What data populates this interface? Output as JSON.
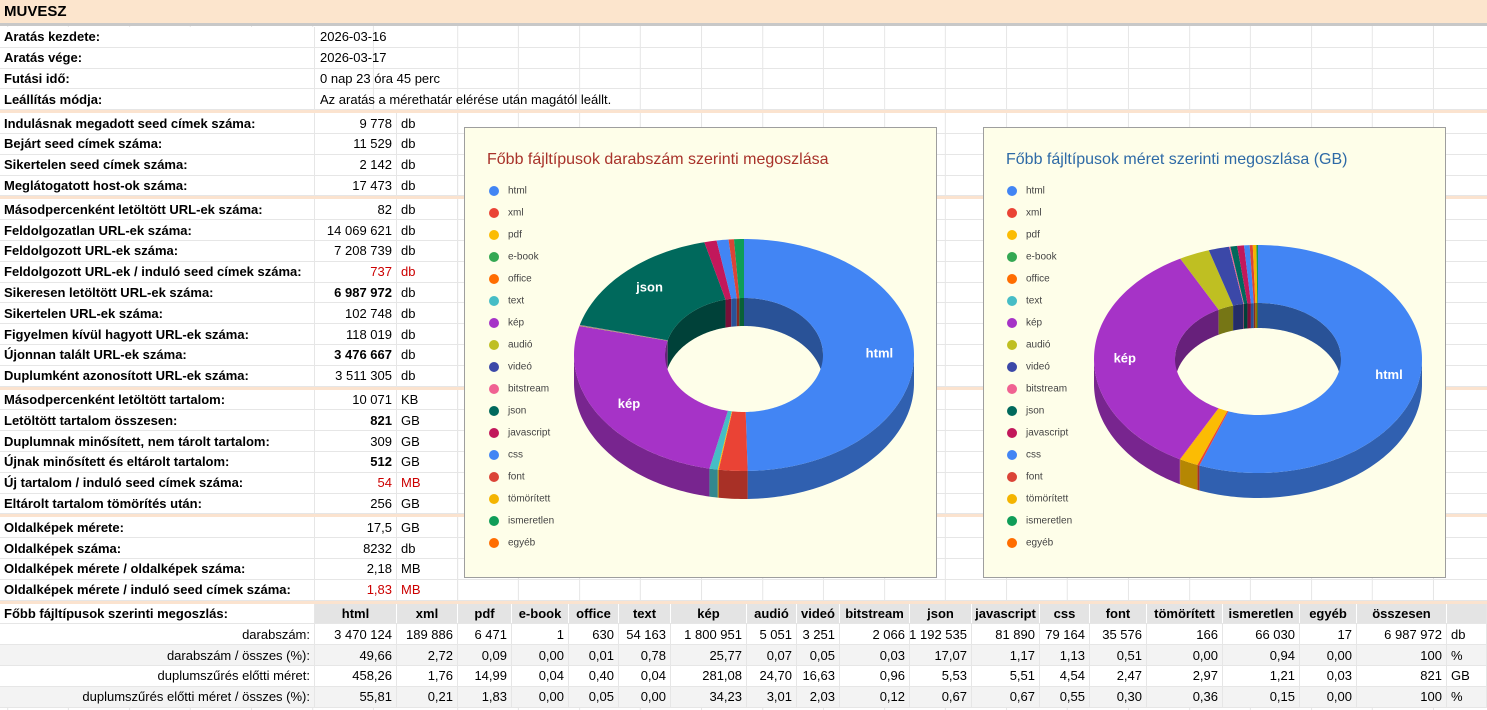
{
  "sheet": {
    "title": "MUVESZ",
    "groups": [
      [
        {
          "label": "Aratás kezdete:",
          "value": "2026-03-16"
        },
        {
          "label": "Aratás vége:",
          "value": "2026-03-17"
        },
        {
          "label": "Futási idő:",
          "value": "0 nap 23 óra 45 perc"
        },
        {
          "label": "Leállítás módja:",
          "value": "Az aratás a mérethatár elérése után magától leállt."
        }
      ],
      [
        {
          "label": "Indulásnak megadott seed címek száma:",
          "value": "9 778",
          "unit": "db"
        },
        {
          "label": "Bejárt seed címek száma:",
          "value": "11 529",
          "unit": "db"
        },
        {
          "label": "Sikertelen seed címek száma:",
          "value": "2 142",
          "unit": "db"
        },
        {
          "label": "Meglátogatott host-ok száma:",
          "value": "17 473",
          "unit": "db"
        }
      ],
      [
        {
          "label": "Másodpercenként letöltött URL-ek száma:",
          "value": "82",
          "unit": "db"
        },
        {
          "label": "Feldolgozatlan URL-ek száma:",
          "value": "14 069 621",
          "unit": "db"
        },
        {
          "label": "Feldolgozott URL-ek száma:",
          "value": "7 208 739",
          "unit": "db"
        },
        {
          "label": "Feldolgozott URL-ek / induló seed címek száma:",
          "value": "737",
          "unit": "db",
          "color": "#cc0000"
        },
        {
          "label": "Sikeresen letöltött URL-ek száma:",
          "value": "6 987 972",
          "unit": "db",
          "bold": true
        },
        {
          "label": "Sikertelen URL-ek száma:",
          "value": "102 748",
          "unit": "db"
        },
        {
          "label": "Figyelmen kívül hagyott URL-ek száma:",
          "value": "118 019",
          "unit": "db"
        },
        {
          "label": "Újonnan talált URL-ek száma:",
          "value": "3 476 667",
          "unit": "db",
          "bold": true
        },
        {
          "label": "Duplumként azonosított URL-ek száma:",
          "value": "3 511 305",
          "unit": "db"
        }
      ],
      [
        {
          "label": "Másodpercenként letöltött tartalom:",
          "value": "10 071",
          "unit": "KB"
        },
        {
          "label": "Letöltött tartalom összesen:",
          "value": "821",
          "unit": "GB",
          "bold": true
        },
        {
          "label": "Duplumnak minősített, nem tárolt tartalom:",
          "value": "309",
          "unit": "GB"
        },
        {
          "label": "Újnak minősített és eltárolt tartalom:",
          "value": "512",
          "unit": "GB",
          "bold": true
        },
        {
          "label": "Új tartalom / induló seed címek száma:",
          "value": "54",
          "unit": "MB",
          "color": "#cc0000"
        },
        {
          "label": "Eltárolt tartalom tömörítés után:",
          "value": "256",
          "unit": "GB"
        }
      ],
      [
        {
          "label": "Oldalképek mérete:",
          "value": "17,5",
          "unit": "GB"
        },
        {
          "label": "Oldalképek száma:",
          "value": "8232",
          "unit": "db"
        },
        {
          "label": "Oldalképek mérete  / oldalképek száma:",
          "value": "2,18",
          "unit": "MB"
        },
        {
          "label": "Oldalképek mérete  / induló seed címek száma:",
          "value": "1,83",
          "unit": "MB",
          "color": "#cc0000"
        }
      ]
    ],
    "distribution": {
      "label": "Főbb fájltípusok szerinti megoszlás:",
      "columns": [
        "html",
        "xml",
        "pdf",
        "e-book",
        "office",
        "text",
        "kép",
        "audió",
        "videó",
        "bitstream",
        "json",
        "javascript",
        "css",
        "font",
        "tömörített",
        "ismeretlen",
        "egyéb",
        "összesen"
      ],
      "rows": [
        {
          "label": "darabszám:",
          "cells": [
            "3 470 124",
            "189 886",
            "6 471",
            "1",
            "630",
            "54 163",
            "1 800 951",
            "5 051",
            "3 251",
            "2 066",
            "1 192 535",
            "81 890",
            "79 164",
            "35 576",
            "166",
            "66 030",
            "17",
            "6 987 972"
          ],
          "unit": "db"
        },
        {
          "label": "darabszám / összes (%):",
          "cells": [
            "49,66",
            "2,72",
            "0,09",
            "0,00",
            "0,01",
            "0,78",
            "25,77",
            "0,07",
            "0,05",
            "0,03",
            "17,07",
            "1,17",
            "1,13",
            "0,51",
            "0,00",
            "0,94",
            "0,00",
            "100"
          ],
          "unit": "%"
        },
        {
          "label": "duplumszűrés előtti méret:",
          "cells": [
            "458,26",
            "1,76",
            "14,99",
            "0,04",
            "0,40",
            "0,04",
            "281,08",
            "24,70",
            "16,63",
            "0,96",
            "5,53",
            "5,51",
            "4,54",
            "2,47",
            "2,97",
            "1,21",
            "0,03",
            "821"
          ],
          "unit": "GB"
        },
        {
          "label": "duplumszűrés előtti méret / összes (%):",
          "cells": [
            "55,81",
            "0,21",
            "1,83",
            "0,00",
            "0,05",
            "0,00",
            "34,23",
            "3,01",
            "2,03",
            "0,12",
            "0,67",
            "0,67",
            "0,55",
            "0,30",
            "0,36",
            "0,15",
            "0,00",
            "100"
          ],
          "unit": "%"
        }
      ]
    }
  },
  "chart_data": [
    {
      "type": "donut",
      "title": "Főbb fájltípusok darabszám szerinti megoszlása",
      "title_color": "#a8322a",
      "legend": "left",
      "categories": [
        "html",
        "xml",
        "pdf",
        "e-book",
        "office",
        "text",
        "kép",
        "audió",
        "videó",
        "bitstream",
        "json",
        "javascript",
        "css",
        "font",
        "tömörített",
        "ismeretlen",
        "egyéb"
      ],
      "values": [
        49.66,
        2.72,
        0.09,
        0.0,
        0.01,
        0.78,
        25.77,
        0.07,
        0.05,
        0.03,
        17.07,
        1.17,
        1.13,
        0.51,
        0.0,
        0.94,
        0.0
      ],
      "colors": [
        "#4285f4",
        "#ea4335",
        "#fbbc04",
        "#34a853",
        "#ff6d01",
        "#46bdc6",
        "#a633c7",
        "#bfbf22",
        "#3b48a8",
        "#f06292",
        "#00695c",
        "#c2185b",
        "#4285f4",
        "#db4437",
        "#f4b400",
        "#0f9d58",
        "#ff6d00"
      ]
    },
    {
      "type": "donut",
      "title": "Főbb fájltípusok méret szerinti megoszlása (GB)",
      "title_color": "#2e6aa6",
      "legend": "left",
      "categories": [
        "html",
        "xml",
        "pdf",
        "e-book",
        "office",
        "text",
        "kép",
        "audió",
        "videó",
        "bitstream",
        "json",
        "javascript",
        "css",
        "font",
        "tömörített",
        "ismeretlen",
        "egyéb"
      ],
      "values": [
        55.81,
        0.21,
        1.83,
        0.0,
        0.05,
        0.0,
        34.23,
        3.01,
        2.03,
        0.12,
        0.67,
        0.67,
        0.55,
        0.3,
        0.36,
        0.15,
        0.0
      ],
      "colors": [
        "#4285f4",
        "#ea4335",
        "#fbbc04",
        "#34a853",
        "#ff6d01",
        "#46bdc6",
        "#a633c7",
        "#bfbf22",
        "#3b48a8",
        "#f06292",
        "#00695c",
        "#c2185b",
        "#4285f4",
        "#db4437",
        "#f4b400",
        "#0f9d58",
        "#ff6d00"
      ]
    }
  ]
}
